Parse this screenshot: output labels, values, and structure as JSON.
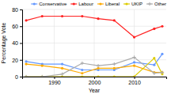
{
  "chart_data": {
    "type": "line",
    "xlabel": "Year",
    "ylabel": "Percentage Vote",
    "x": [
      1983,
      1987,
      1992,
      1997,
      2001,
      2005,
      2010,
      2015,
      2017
    ],
    "xlim": [
      1982,
      2018
    ],
    "xticks": [
      1990,
      2000,
      2010
    ],
    "ylim": [
      0,
      80
    ],
    "yticks": [
      0,
      20,
      40,
      60,
      80
    ],
    "grid": true,
    "legend": "upper right",
    "series": [
      {
        "name": "Conservative",
        "color": "#6699ff",
        "marker": "circle",
        "values": [
          18,
          15,
          15,
          8,
          8,
          8,
          17,
          14,
          27
        ]
      },
      {
        "name": "Labour",
        "color": "#ff2222",
        "marker": "circle",
        "values": [
          67,
          72,
          72,
          72,
          69,
          67,
          47,
          57,
          60
        ]
      },
      {
        "name": "Liberal",
        "color": "#ffaa00",
        "marker": "circle",
        "values": [
          15,
          13,
          10,
          4,
          10,
          10,
          13,
          5,
          5
        ]
      },
      {
        "name": "UKIP",
        "color": "#ddcc00",
        "marker": "circle",
        "values": [
          0,
          0,
          0,
          0,
          0,
          0,
          0,
          22,
          3
        ]
      },
      {
        "name": "Other",
        "color": "#aaaaaa",
        "marker": "plus",
        "values": [
          0,
          0,
          3,
          16,
          13,
          15,
          23,
          4,
          5
        ]
      }
    ]
  }
}
